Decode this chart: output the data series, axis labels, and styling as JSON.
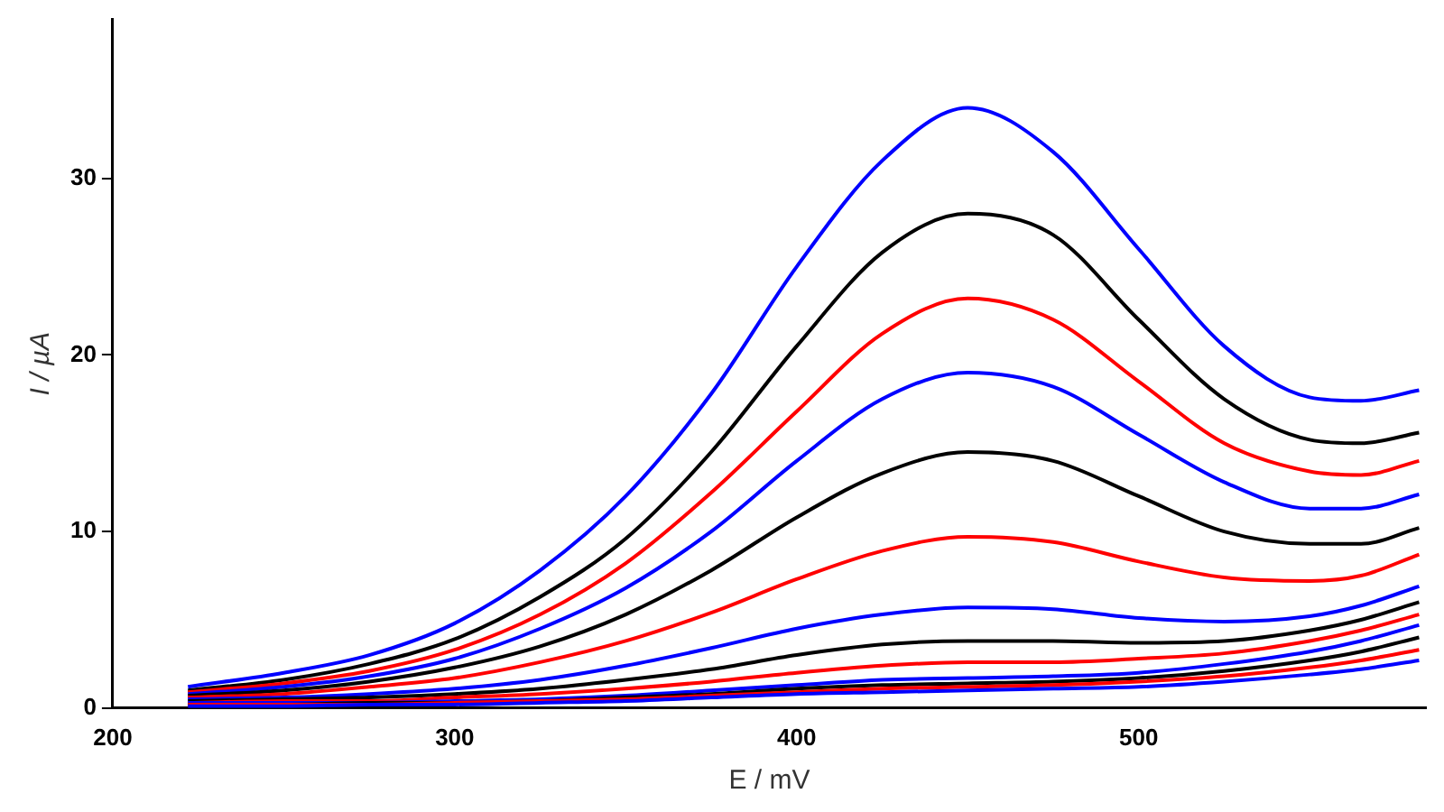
{
  "chart_data": {
    "type": "line",
    "xlabel": "E / mV",
    "ylabel": "I / µA",
    "xlim": [
      200,
      584
    ],
    "xticks": [
      200,
      300,
      400,
      500
    ],
    "ylim": [
      0,
      39
    ],
    "yticks": [
      0,
      10,
      20,
      30
    ],
    "grid": false,
    "legend": false,
    "marker": "none",
    "line_style": "solid",
    "x": [
      222,
      250,
      275,
      300,
      325,
      350,
      375,
      400,
      425,
      450,
      475,
      500,
      525,
      550,
      565,
      582
    ],
    "series": [
      {
        "color": "#0000ff",
        "values": [
          0.1,
          0.1,
          0.2,
          0.2,
          0.3,
          0.4,
          0.6,
          0.8,
          0.9,
          1.0,
          1.1,
          1.2,
          1.5,
          1.9,
          2.2,
          2.7
        ]
      },
      {
        "color": "#ff0000",
        "values": [
          0.2,
          0.2,
          0.2,
          0.3,
          0.4,
          0.5,
          0.7,
          0.9,
          1.1,
          1.2,
          1.3,
          1.5,
          1.8,
          2.3,
          2.7,
          3.3
        ]
      },
      {
        "color": "#000000",
        "values": [
          0.2,
          0.2,
          0.3,
          0.3,
          0.4,
          0.6,
          0.8,
          1.1,
          1.3,
          1.4,
          1.5,
          1.7,
          2.1,
          2.7,
          3.2,
          4.0
        ]
      },
      {
        "color": "#0000ff",
        "values": [
          0.3,
          0.3,
          0.3,
          0.4,
          0.5,
          0.7,
          1.0,
          1.3,
          1.6,
          1.7,
          1.8,
          2.0,
          2.5,
          3.2,
          3.8,
          4.7
        ]
      },
      {
        "color": "#ff0000",
        "values": [
          0.3,
          0.4,
          0.4,
          0.6,
          0.8,
          1.1,
          1.5,
          2.0,
          2.4,
          2.6,
          2.6,
          2.8,
          3.1,
          3.8,
          4.4,
          5.3
        ]
      },
      {
        "color": "#000000",
        "values": [
          0.4,
          0.5,
          0.6,
          0.8,
          1.1,
          1.6,
          2.2,
          3.0,
          3.6,
          3.8,
          3.8,
          3.7,
          3.8,
          4.4,
          5.0,
          6.0
        ]
      },
      {
        "color": "#0000ff",
        "values": [
          0.5,
          0.6,
          0.8,
          1.1,
          1.6,
          2.4,
          3.4,
          4.5,
          5.3,
          5.7,
          5.6,
          5.1,
          4.9,
          5.2,
          5.8,
          6.9
        ]
      },
      {
        "color": "#ff0000",
        "values": [
          0.6,
          0.8,
          1.2,
          1.7,
          2.6,
          3.8,
          5.4,
          7.3,
          8.9,
          9.7,
          9.4,
          8.3,
          7.4,
          7.2,
          7.5,
          8.7
        ]
      },
      {
        "color": "#000000",
        "values": [
          0.7,
          1.0,
          1.5,
          2.3,
          3.5,
          5.3,
          7.8,
          10.8,
          13.3,
          14.5,
          14.0,
          12,
          10,
          9.3,
          9.3,
          10.2
        ]
      },
      {
        "color": "#0000ff",
        "values": [
          0.8,
          1.2,
          1.8,
          2.8,
          4.5,
          6.8,
          10,
          14,
          17.5,
          19,
          18.2,
          15.5,
          12.8,
          11.3,
          11.3,
          12.1
        ]
      },
      {
        "color": "#ff0000",
        "values": [
          0.9,
          1.4,
          2.1,
          3.3,
          5.3,
          8.2,
          12.2,
          16.8,
          21.2,
          23.2,
          22,
          18.5,
          15,
          13.4,
          13.2,
          14.0
        ]
      },
      {
        "color": "#000000",
        "values": [
          1.0,
          1.6,
          2.5,
          3.9,
          6.3,
          9.6,
          14.5,
          20.5,
          25.8,
          28,
          26.8,
          22,
          17.5,
          15.2,
          15.0,
          15.6
        ]
      },
      {
        "color": "#0000ff",
        "values": [
          1.2,
          2.0,
          3.0,
          4.8,
          7.8,
          12.0,
          17.8,
          25,
          31,
          34,
          31.5,
          26,
          20.5,
          17.6,
          17.4,
          18.0
        ]
      }
    ]
  }
}
